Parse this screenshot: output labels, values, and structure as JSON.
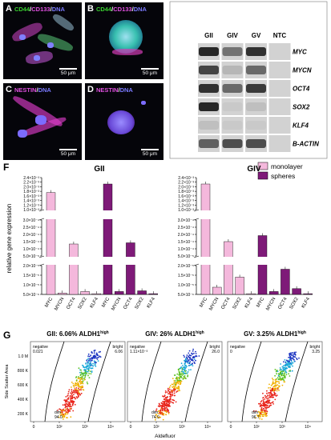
{
  "micrographs": [
    {
      "panel": "A",
      "stain_1": "CD44",
      "stain_2": "CD133",
      "stain_3": "DNA",
      "scale": "50 μm"
    },
    {
      "panel": "B",
      "stain_1": "CD44",
      "stain_2": "CD133",
      "stain_3": "DNA",
      "scale": "50 μm"
    },
    {
      "panel": "C",
      "stain_1": "NESTIN",
      "stain_3": "DNA",
      "scale": "50 μm"
    },
    {
      "panel": "D",
      "stain_1": "NESTIN",
      "stain_3": "DNA",
      "scale": "50 μm"
    }
  ],
  "stain_colors": {
    "CD44": "#39d12f",
    "CD133": "#e050e0",
    "NESTIN": "#e050e0",
    "DNA": "#7a7aff"
  },
  "gel": {
    "panel": "E",
    "lanes": [
      "GII",
      "GIV",
      "GV",
      "NTC"
    ],
    "genes": [
      "MYC",
      "MYCN",
      "OCT4",
      "SOX2",
      "KLF4",
      "B-ACTIN"
    ],
    "band_intensity": [
      [
        0.9,
        0.5,
        0.85,
        0.0
      ],
      [
        0.75,
        0.15,
        0.55,
        0.0
      ],
      [
        0.85,
        0.55,
        0.8,
        0.0
      ],
      [
        0.9,
        0.05,
        0.1,
        0.0
      ],
      [
        0.1,
        0.05,
        0.05,
        0.0
      ],
      [
        0.6,
        0.7,
        0.7,
        0.0
      ]
    ]
  },
  "chart_data": {
    "panel": "F",
    "type": "bar",
    "ylabel": "relative gene expression",
    "categories": [
      "MYC",
      "MYCN",
      "OCT4",
      "SOX2",
      "KLF4",
      "MYC",
      "MYCN",
      "OCT4",
      "SOX2",
      "KLF4"
    ],
    "legend": [
      "monolayer",
      "spheres"
    ],
    "legend_position": "top-right",
    "colors": {
      "monolayer": "#f4b8dc",
      "spheres": "#7e1a78"
    },
    "y_segments": [
      {
        "ticks": [
          "1.0×10⁻³",
          "1.2×10⁻³",
          "1.4×10⁻³",
          "1.6×10⁻³",
          "1.8×10⁻³",
          "2.0×10⁻³",
          "2.2×10⁻³",
          "2.4×10⁻³"
        ],
        "range": [
          0.001,
          0.0025
        ]
      },
      {
        "ticks": [
          "5.0×10⁻⁵",
          "1.0×10⁻⁴",
          "1.5×10⁻⁴",
          "2.0×10⁻⁴",
          "2.5×10⁻⁴",
          "3.0×10⁻⁴"
        ],
        "range": [
          5e-05,
          0.00035
        ]
      },
      {
        "ticks": [
          "5.0×10⁻⁶",
          "1.0×10⁻⁵",
          "1.5×10⁻⁵",
          "2.0×10⁻⁵"
        ],
        "range": [
          0,
          2e-05
        ]
      }
    ],
    "groups": [
      {
        "name": "GII",
        "values": [
          0.0018,
          1e-06,
          0.00015,
          2e-06,
          5e-07,
          0.0022,
          2e-06,
          0.00016,
          2.5e-06,
          5e-07
        ]
      },
      {
        "name": "GIV",
        "values": [
          0.0022,
          5e-06,
          0.00017,
          1.2e-05,
          5e-07,
          0.00022,
          2e-06,
          1.75e-05,
          4e-06,
          5e-07
        ]
      }
    ]
  },
  "flow": {
    "panel": "G",
    "xlabel": "Aldefluor",
    "ylabel": "Side Scatter Area",
    "y_ticks": [
      "200 K",
      "400 K",
      "600 K",
      "800 K",
      "1.0 M"
    ],
    "x_ticks": [
      "0",
      "10²",
      "10³",
      "10⁴"
    ],
    "plots": [
      {
        "title": "GII: 6.06% ALDH1",
        "sup": "high",
        "negative_label": "negative",
        "negative_value": "0.021",
        "bright_label": "bright",
        "bright_value": "6.06",
        "dim_label": "dim",
        "dim_value": "94.0"
      },
      {
        "title": "GIV: 26% ALDH1",
        "sup": "high",
        "negative_label": "negative",
        "negative_value": "1.11×10⁻³",
        "bright_label": "bright",
        "bright_value": "26.0",
        "dim_label": "dim",
        "dim_value": "74.0"
      },
      {
        "title": "GV: 3.25% ALDH1",
        "sup": "high",
        "negative_label": "negative",
        "negative_value": "0",
        "bright_label": "bright",
        "bright_value": "3.25",
        "dim_label": "dim",
        "dim_value": "96.7"
      }
    ]
  }
}
